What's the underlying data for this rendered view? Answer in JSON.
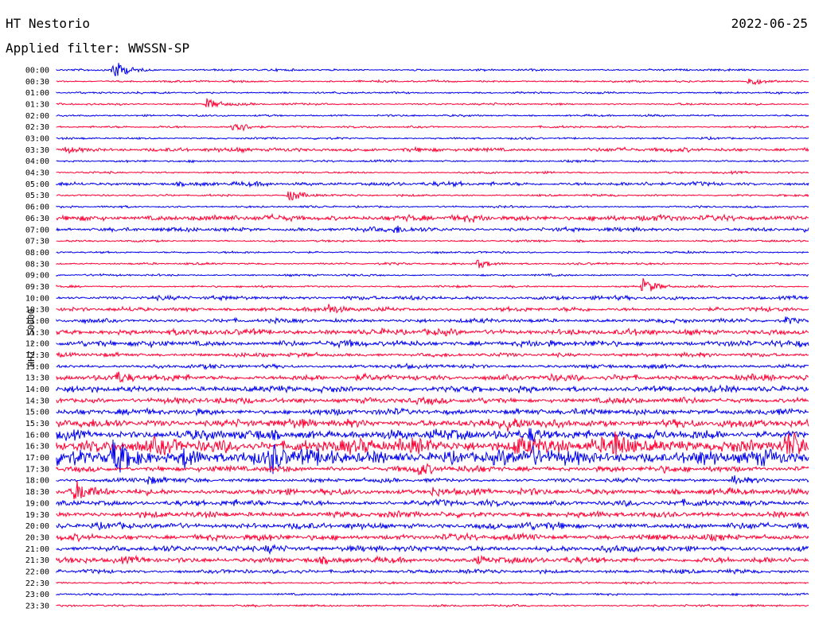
{
  "header": {
    "station": "HT Nestorio",
    "date": "2022-06-25",
    "filter_text": "Applied filter: WWSSN-SP"
  },
  "ylabel": "HHZ - 50000",
  "colors": {
    "odd_trace": "#0000ee",
    "even_trace": "#ff0033",
    "background": "#ffffff"
  },
  "chart_data": {
    "type": "line",
    "title": "HT Nestorio",
    "subtitle": "Applied filter: WWSSN-SP",
    "ylabel": "HHZ - 50000",
    "xlabel": "",
    "grid": false,
    "categories": [
      "00:00",
      "00:30",
      "01:00",
      "01:30",
      "02:00",
      "02:30",
      "03:00",
      "03:30",
      "04:00",
      "04:30",
      "05:00",
      "05:30",
      "06:00",
      "06:30",
      "07:00",
      "07:30",
      "08:00",
      "08:30",
      "09:00",
      "09:30",
      "10:00",
      "10:30",
      "11:00",
      "11:30",
      "12:00",
      "12:30",
      "13:00",
      "13:30",
      "14:00",
      "14:30",
      "15:00",
      "15:30",
      "16:00",
      "16:30",
      "17:00",
      "17:30",
      "18:00",
      "18:30",
      "19:00",
      "19:30",
      "20:00",
      "20:30",
      "21:00",
      "21:30",
      "22:00",
      "22:30",
      "23:00",
      "23:30"
    ],
    "noise_level": [
      1,
      1,
      1,
      1,
      1,
      1,
      1,
      2,
      1,
      1,
      2,
      1,
      1,
      3,
      2,
      1,
      1,
      1,
      1,
      1,
      2,
      2,
      2,
      3,
      3,
      2,
      2,
      3,
      3,
      3,
      3,
      4,
      5,
      7,
      7,
      3,
      2,
      3,
      3,
      3,
      3,
      3,
      3,
      3,
      2,
      1,
      1,
      1
    ],
    "events": [
      {
        "row": 0,
        "t": 0.075,
        "amp": 14
      },
      {
        "row": 1,
        "t": 0.92,
        "amp": 6
      },
      {
        "row": 3,
        "t": 0.2,
        "amp": 7
      },
      {
        "row": 5,
        "t": 0.235,
        "amp": 10
      },
      {
        "row": 7,
        "t": 0.012,
        "amp": 4
      },
      {
        "row": 11,
        "t": 0.31,
        "amp": 8
      },
      {
        "row": 14,
        "t": 0.45,
        "amp": 5
      },
      {
        "row": 17,
        "t": 0.56,
        "amp": 6
      },
      {
        "row": 19,
        "t": 0.78,
        "amp": 10
      },
      {
        "row": 21,
        "t": 0.36,
        "amp": 6
      },
      {
        "row": 22,
        "t": 0.97,
        "amp": 4
      },
      {
        "row": 27,
        "t": 0.08,
        "amp": 5
      },
      {
        "row": 31,
        "t": 0.6,
        "amp": 9
      },
      {
        "row": 32,
        "t": 0.63,
        "amp": 8
      },
      {
        "row": 33,
        "t": 0.61,
        "amp": 11
      },
      {
        "row": 33,
        "t": 0.74,
        "amp": 13
      },
      {
        "row": 33,
        "t": 0.97,
        "amp": 12
      },
      {
        "row": 34,
        "t": 0.075,
        "amp": 18
      },
      {
        "row": 34,
        "t": 0.17,
        "amp": 12
      },
      {
        "row": 34,
        "t": 0.285,
        "amp": 16
      },
      {
        "row": 34,
        "t": 0.63,
        "amp": 10
      },
      {
        "row": 35,
        "t": 0.48,
        "amp": 7
      },
      {
        "row": 36,
        "t": 0.12,
        "amp": 6
      },
      {
        "row": 36,
        "t": 0.9,
        "amp": 6
      },
      {
        "row": 37,
        "t": 0.025,
        "amp": 12
      },
      {
        "row": 37,
        "t": 0.5,
        "amp": 6
      },
      {
        "row": 40,
        "t": 0.62,
        "amp": 6
      },
      {
        "row": 42,
        "t": 0.28,
        "amp": 5
      },
      {
        "row": 43,
        "t": 0.56,
        "amp": 4
      }
    ]
  }
}
